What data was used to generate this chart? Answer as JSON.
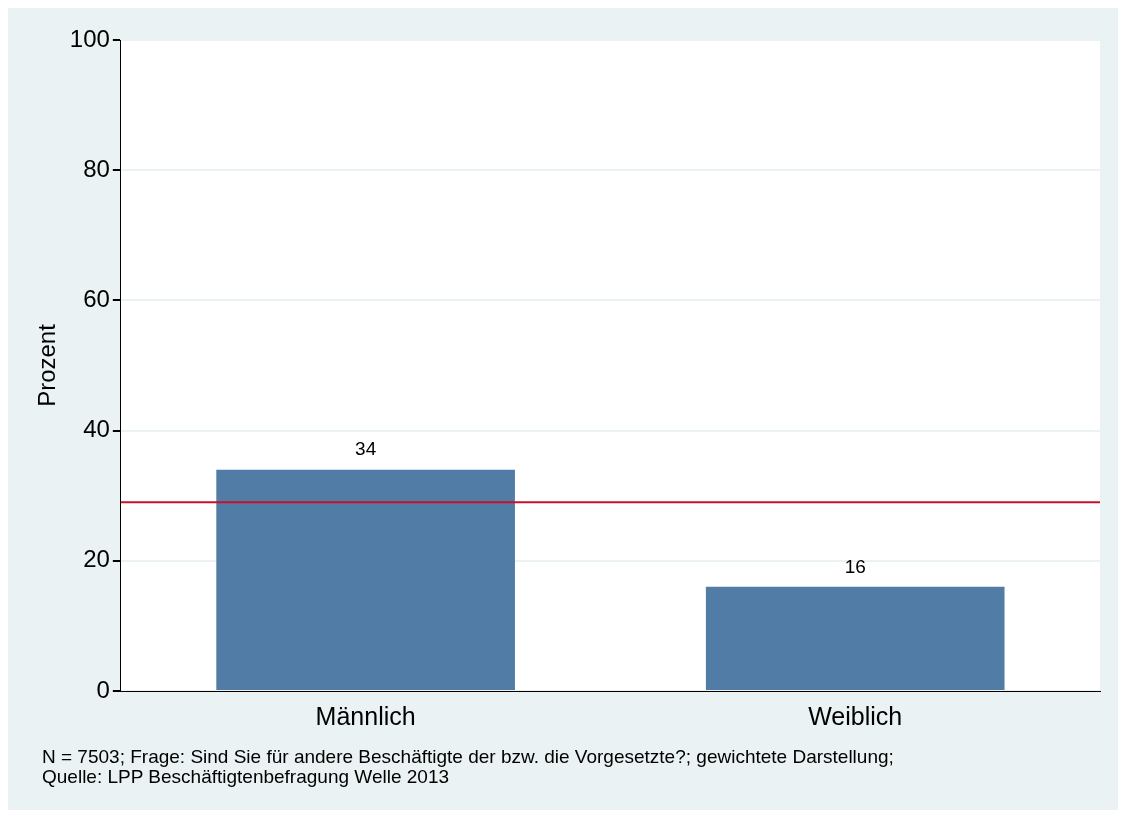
{
  "chart_data": {
    "type": "bar",
    "ylabel": "Prozent",
    "categories": [
      "Männlich",
      "Weiblich"
    ],
    "values": [
      34,
      16
    ],
    "color": "#517ca5",
    "ylim": [
      0,
      100
    ],
    "yticks": [
      0,
      20,
      40,
      60,
      80,
      100
    ],
    "grid": "y",
    "data_labels": true,
    "ref_lines": [
      {
        "axis": "y",
        "value": 29,
        "color": "#c8102e"
      }
    ],
    "annotations": [
      "N = 7503; Frage: Sind Sie für andere Beschäftigte der bzw. die Vorgesetzte?; gewichtete Darstellung;",
      "Quelle: LPP Beschäftigtenbefragung Welle 2013"
    ]
  }
}
